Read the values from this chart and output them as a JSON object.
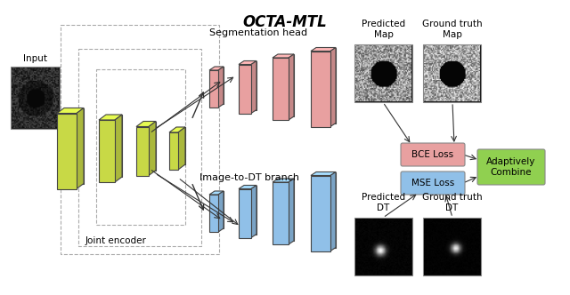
{
  "title": "OCTA-MTL",
  "bg_color": "#ffffff",
  "encoder_color": "#c8d946",
  "seg_color": "#e8a0a0",
  "dt_color": "#90c0e8",
  "bce_box_color": "#e8a0a0",
  "mse_box_color": "#90c0e8",
  "combine_box_color": "#90d050",
  "encoder_label": "Joint encoder",
  "seg_label": "Segmentation head",
  "dt_label": "Image-to-DT branch",
  "input_label": "Input",
  "pred_map_label": "Predicted\nMap",
  "gt_map_label": "Ground truth\nMap",
  "pred_dt_label": "Predicted\nDT",
  "gt_dt_label": "Ground truth\nDT",
  "bce_label": "BCE Loss",
  "mse_label": "MSE Loss",
  "combine_label": "Adaptively\nCombine"
}
